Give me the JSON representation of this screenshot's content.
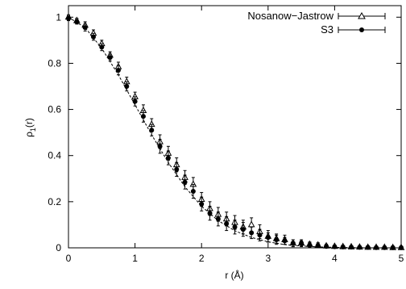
{
  "chart_data": {
    "type": "scatter",
    "title": "",
    "xlabel": "r (Å)",
    "ylabel_main": "ρ",
    "ylabel_sub": "1",
    "ylabel_tail": "(r)",
    "xlim": [
      0,
      5
    ],
    "ylim": [
      0,
      1.05
    ],
    "xticks": [
      "0",
      "1",
      "2",
      "3",
      "4",
      "5"
    ],
    "yticks": [
      "0",
      "0.2",
      "0.4",
      "0.6",
      "0.8",
      "1"
    ],
    "legend_position": "top-right",
    "series": [
      {
        "name": "Nosanow−Jastrow",
        "marker": "open-triangle",
        "x": [
          0.0,
          0.125,
          0.25,
          0.375,
          0.5,
          0.625,
          0.75,
          0.875,
          1.0,
          1.125,
          1.25,
          1.375,
          1.5,
          1.625,
          1.75,
          1.875,
          2.0,
          2.125,
          2.25,
          2.375,
          2.5,
          2.625,
          2.75,
          2.875,
          3.0,
          3.125,
          3.25,
          3.375,
          3.5,
          3.625,
          3.75,
          3.875,
          4.0,
          4.125,
          4.25,
          4.375,
          4.5,
          4.625,
          4.75,
          4.875,
          5.0
        ],
        "y": [
          1.0,
          0.985,
          0.965,
          0.93,
          0.885,
          0.835,
          0.785,
          0.72,
          0.655,
          0.595,
          0.535,
          0.46,
          0.41,
          0.36,
          0.305,
          0.275,
          0.21,
          0.17,
          0.145,
          0.125,
          0.11,
          0.09,
          0.1,
          0.07,
          0.05,
          0.04,
          0.035,
          0.02,
          0.02,
          0.015,
          0.012,
          0.008,
          0.006,
          0.005,
          0.004,
          0.003,
          0.002,
          0.002,
          0.002,
          0.001,
          0.001
        ],
        "err": [
          0.01,
          0.01,
          0.015,
          0.015,
          0.015,
          0.015,
          0.02,
          0.02,
          0.02,
          0.025,
          0.025,
          0.03,
          0.03,
          0.03,
          0.03,
          0.03,
          0.03,
          0.03,
          0.03,
          0.03,
          0.03,
          0.03,
          0.03,
          0.03,
          0.025,
          0.02,
          0.02,
          0.015,
          0.015,
          0.01,
          0.01,
          0.008,
          0.006,
          0.005,
          0.004,
          0.003,
          0.003,
          0.003,
          0.002,
          0.002,
          0.002
        ]
      },
      {
        "name": "S3",
        "marker": "filled-circle",
        "x": [
          0.0,
          0.125,
          0.25,
          0.375,
          0.5,
          0.625,
          0.75,
          0.875,
          1.0,
          1.125,
          1.25,
          1.375,
          1.5,
          1.625,
          1.75,
          1.875,
          2.0,
          2.125,
          2.25,
          2.375,
          2.5,
          2.625,
          2.75,
          2.875,
          3.0,
          3.125,
          3.25,
          3.375,
          3.5,
          3.625,
          3.75,
          3.875,
          4.0,
          4.125,
          4.25,
          4.375,
          4.5,
          4.625,
          4.75,
          4.875,
          5.0
        ],
        "y": [
          0.995,
          0.98,
          0.955,
          0.915,
          0.87,
          0.825,
          0.77,
          0.7,
          0.635,
          0.57,
          0.51,
          0.44,
          0.39,
          0.34,
          0.285,
          0.245,
          0.19,
          0.15,
          0.125,
          0.105,
          0.09,
          0.08,
          0.065,
          0.055,
          0.045,
          0.035,
          0.03,
          0.02,
          0.02,
          0.012,
          0.01,
          0.006,
          0.005,
          0.004,
          0.003,
          0.002,
          0.002,
          0.001,
          0.001,
          0.001,
          0.001
        ],
        "err": [
          0.01,
          0.01,
          0.015,
          0.015,
          0.015,
          0.015,
          0.02,
          0.02,
          0.02,
          0.025,
          0.025,
          0.03,
          0.03,
          0.03,
          0.03,
          0.03,
          0.03,
          0.03,
          0.03,
          0.03,
          0.03,
          0.03,
          0.025,
          0.025,
          0.02,
          0.02,
          0.015,
          0.015,
          0.01,
          0.01,
          0.008,
          0.006,
          0.005,
          0.004,
          0.003,
          0.003,
          0.002,
          0.002,
          0.002,
          0.002,
          0.002
        ]
      },
      {
        "name": "",
        "marker": "dashed-line",
        "x": [
          0.0,
          0.25,
          0.5,
          0.75,
          1.0,
          1.25,
          1.5,
          1.75,
          2.0,
          2.25,
          2.5,
          2.75,
          3.0,
          3.25,
          3.5,
          3.75,
          4.0,
          4.25,
          4.5,
          4.75,
          5.0
        ],
        "y": [
          1.0,
          0.955,
          0.865,
          0.75,
          0.62,
          0.49,
          0.37,
          0.265,
          0.18,
          0.118,
          0.074,
          0.045,
          0.026,
          0.014,
          0.008,
          0.004,
          0.002,
          0.001,
          0.0005,
          0.0002,
          0.0001
        ]
      }
    ]
  }
}
